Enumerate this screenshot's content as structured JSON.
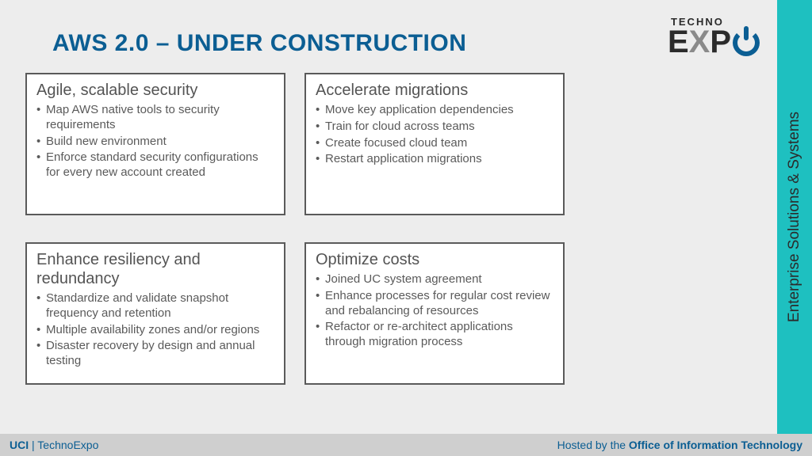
{
  "title": "AWS 2.0 – UNDER CONSTRUCTION",
  "logo": {
    "top": "TECHNO",
    "e": "E",
    "x": "X",
    "p": "P"
  },
  "sidebar": {
    "label": "Enterprise Solutions & Systems"
  },
  "cards": [
    {
      "title": "Agile, scalable security",
      "items": [
        "Map AWS native tools to security requirements",
        "Build new environment",
        "Enforce standard security configurations for every new account created"
      ]
    },
    {
      "title": "Accelerate migrations",
      "items": [
        "Move key application dependencies",
        "Train for cloud across teams",
        "Create focused cloud team",
        "Restart application migrations"
      ]
    },
    {
      "title": "Enhance resiliency and redundancy",
      "items": [
        "Standardize and validate snapshot frequency and retention",
        "Multiple availability zones and/or regions",
        "Disaster recovery by design and annual testing"
      ]
    },
    {
      "title": "Optimize costs",
      "items": [
        "Joined UC system agreement",
        "Enhance processes for regular cost review and rebalancing of resources",
        "Refactor or re-architect applications through migration process"
      ]
    }
  ],
  "footer": {
    "uci": "UCI",
    "sep": " | ",
    "expo": "TechnoExpo",
    "hosted": "Hosted by the ",
    "office": "Office of Information Technology"
  },
  "colors": {
    "title": "#0b5e93",
    "card_border": "#5a5a5a",
    "card_bg": "#ffffff",
    "body_bg": "#ededed",
    "sidebar_bg": "#1ec0c0",
    "footer_bg": "#cfcfcf",
    "text": "#5a5a5a"
  }
}
